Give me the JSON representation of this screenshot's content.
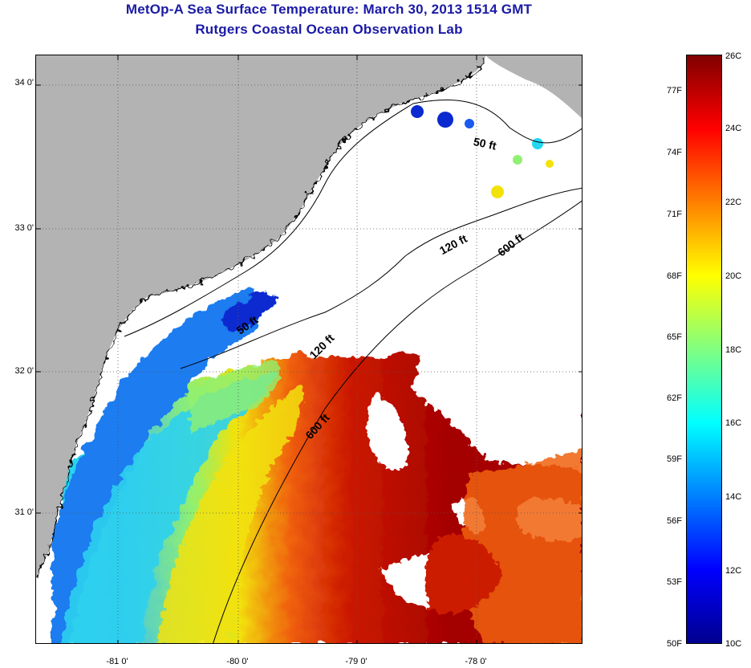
{
  "header": {
    "title": "MetOp-A Sea Surface Temperature:  March 30, 2013 1514 GMT",
    "subtitle": "Rutgers Coastal Ocean Observation Lab"
  },
  "map": {
    "lat_labels": [
      "34 0'",
      "33 0'",
      "32 0'",
      "31 0'"
    ],
    "lon_labels": [
      "-81 0'",
      "-80 0'",
      "-79 0'",
      "-78 0'"
    ],
    "contour_labels": [
      "50 ft",
      "120 ft",
      "600 ft",
      "50 ft",
      "120 ft",
      "600 ft"
    ],
    "colors": {
      "land": "#b3b3b3",
      "cloud": "#ffffff",
      "warm": "#cc1a00",
      "hot": "#a30000",
      "orange": "#f06010",
      "yellow": "#f2e20a",
      "green": "#90f070",
      "cyan": "#22d8f0",
      "blue": "#1a7cf0",
      "darkblue": "#0a2ad0"
    }
  },
  "colorbar": {
    "fahrenheit": [
      "77F",
      "74F",
      "71F",
      "68F",
      "65F",
      "62F",
      "59F",
      "56F",
      "53F",
      "50F"
    ],
    "celsius": [
      "26C",
      "24C",
      "22C",
      "20C",
      "18C",
      "16C",
      "14C",
      "12C",
      "10C"
    ]
  }
}
